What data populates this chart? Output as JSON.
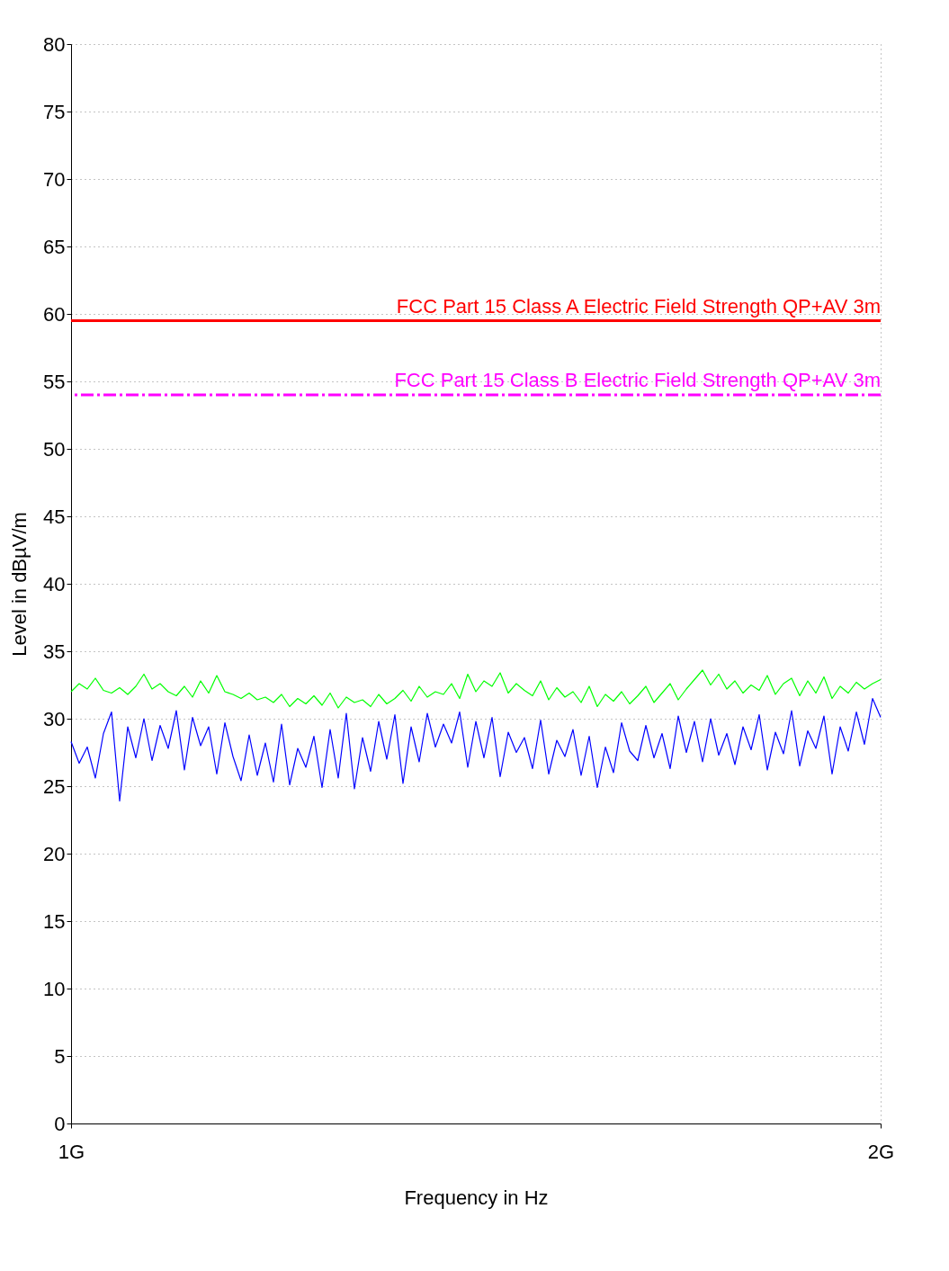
{
  "chart_data": {
    "type": "line",
    "xlabel": "Frequency in Hz",
    "ylabel": "Level in dBµV/m",
    "x": [
      1.0,
      1.01,
      1.02,
      1.03,
      1.04,
      1.05,
      1.06,
      1.07,
      1.08,
      1.09,
      1.1,
      1.11,
      1.12,
      1.13,
      1.14,
      1.15,
      1.16,
      1.17,
      1.18,
      1.19,
      1.2,
      1.21,
      1.22,
      1.23,
      1.24,
      1.25,
      1.26,
      1.27,
      1.28,
      1.29,
      1.3,
      1.31,
      1.32,
      1.33,
      1.34,
      1.35,
      1.36,
      1.37,
      1.38,
      1.39,
      1.4,
      1.41,
      1.42,
      1.43,
      1.44,
      1.45,
      1.46,
      1.47,
      1.48,
      1.49,
      1.5,
      1.51,
      1.52,
      1.53,
      1.54,
      1.55,
      1.56,
      1.57,
      1.58,
      1.59,
      1.6,
      1.61,
      1.62,
      1.63,
      1.64,
      1.65,
      1.66,
      1.67,
      1.68,
      1.69,
      1.7,
      1.71,
      1.72,
      1.73,
      1.74,
      1.75,
      1.76,
      1.77,
      1.78,
      1.79,
      1.8,
      1.81,
      1.82,
      1.83,
      1.84,
      1.85,
      1.86,
      1.87,
      1.88,
      1.89,
      1.9,
      1.91,
      1.92,
      1.93,
      1.94,
      1.95,
      1.96,
      1.97,
      1.98,
      1.99,
      2.0
    ],
    "series": [
      {
        "color": "#00ff00",
        "values": [
          32.0,
          32.6,
          32.2,
          33.0,
          32.1,
          31.9,
          32.3,
          31.8,
          32.4,
          33.3,
          32.2,
          32.6,
          32.0,
          31.7,
          32.4,
          31.6,
          32.8,
          31.9,
          33.2,
          32.0,
          31.8,
          31.5,
          31.9,
          31.4,
          31.6,
          31.2,
          31.8,
          30.9,
          31.5,
          31.1,
          31.7,
          31.0,
          31.9,
          30.8,
          31.6,
          31.2,
          31.4,
          30.9,
          31.8,
          31.1,
          31.5,
          32.1,
          31.3,
          32.4,
          31.6,
          32.0,
          31.8,
          32.6,
          31.5,
          33.3,
          32.0,
          32.8,
          32.4,
          33.4,
          31.9,
          32.6,
          32.1,
          31.7,
          32.8,
          31.4,
          32.3,
          31.6,
          32.0,
          31.2,
          32.4,
          30.9,
          31.8,
          31.3,
          32.0,
          31.1,
          31.7,
          32.4,
          31.2,
          31.9,
          32.6,
          31.4,
          32.2,
          32.9,
          33.6,
          32.5,
          33.3,
          32.2,
          32.8,
          31.9,
          32.5,
          32.1,
          33.2,
          31.8,
          32.6,
          33.0,
          31.7,
          32.8,
          31.9,
          33.1,
          31.5,
          32.4,
          31.9,
          32.7,
          32.2,
          32.6,
          32.9
        ]
      },
      {
        "color": "#0000ff",
        "values": [
          28.3,
          26.7,
          27.9,
          25.6,
          28.9,
          30.5,
          23.9,
          29.4,
          27.1,
          30.0,
          26.9,
          29.5,
          27.8,
          30.6,
          26.2,
          30.1,
          28.0,
          29.4,
          25.9,
          29.7,
          27.2,
          25.4,
          28.8,
          25.8,
          28.2,
          25.3,
          29.6,
          25.1,
          27.8,
          26.4,
          28.7,
          24.9,
          29.2,
          25.6,
          30.4,
          24.8,
          28.6,
          26.1,
          29.8,
          27.0,
          30.3,
          25.2,
          29.4,
          26.8,
          30.4,
          27.9,
          29.6,
          28.2,
          30.5,
          26.4,
          29.8,
          27.1,
          30.1,
          25.7,
          29.0,
          27.5,
          28.6,
          26.3,
          29.9,
          25.9,
          28.4,
          27.2,
          29.2,
          25.8,
          28.7,
          24.9,
          27.9,
          26.0,
          29.7,
          27.6,
          26.9,
          29.5,
          27.1,
          28.9,
          26.3,
          30.2,
          27.5,
          29.8,
          26.8,
          30.0,
          27.3,
          28.9,
          26.6,
          29.4,
          27.7,
          30.3,
          26.2,
          29.0,
          27.4,
          30.6,
          26.5,
          29.1,
          27.8,
          30.2,
          25.9,
          29.4,
          27.6,
          30.5,
          28.1,
          31.5,
          30.1
        ]
      }
    ],
    "ref_lines": [
      {
        "axis": "y",
        "value": 59.5,
        "label": "FCC Part 15 Class A Electric Field Strength QP+AV 3m",
        "color": "#ff0000",
        "line_style": "solid"
      },
      {
        "axis": "y",
        "value": 54,
        "label": "FCC Part 15 Class B Electric Field Strength QP+AV 3m",
        "color": "#ff00ff",
        "line_style": "dashed"
      }
    ],
    "xlim": [
      1,
      2
    ],
    "xticks": [
      {
        "value": 1,
        "label": "1G"
      },
      {
        "value": 2,
        "label": "2G"
      }
    ],
    "ylim": [
      0,
      80
    ],
    "yticks": [
      0,
      5,
      10,
      15,
      20,
      25,
      30,
      35,
      40,
      45,
      50,
      55,
      60,
      65,
      70,
      75,
      80
    ],
    "grid": true,
    "marker": "none",
    "line_style": "solid"
  }
}
